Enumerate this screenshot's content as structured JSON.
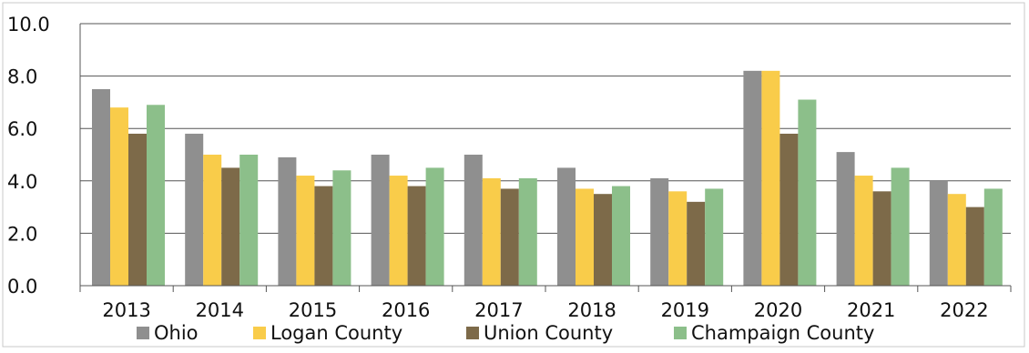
{
  "chart_data": {
    "type": "bar",
    "categories": [
      "2013",
      "2014",
      "2015",
      "2016",
      "2017",
      "2018",
      "2019",
      "2020",
      "2021",
      "2022"
    ],
    "series": [
      {
        "name": "Ohio",
        "color": "#8f8f8f",
        "values": [
          7.5,
          5.8,
          4.9,
          5.0,
          5.0,
          4.5,
          4.1,
          8.2,
          5.1,
          4.0
        ]
      },
      {
        "name": "Logan County",
        "color": "#f9cc4a",
        "values": [
          6.8,
          5.0,
          4.2,
          4.2,
          4.1,
          3.7,
          3.6,
          8.2,
          4.2,
          3.5
        ]
      },
      {
        "name": "Union County",
        "color": "#7d6a49",
        "values": [
          5.8,
          4.5,
          3.8,
          3.8,
          3.7,
          3.5,
          3.2,
          5.8,
          3.6,
          3.0
        ]
      },
      {
        "name": "Champaign County",
        "color": "#8cbf8a",
        "values": [
          6.9,
          5.0,
          4.4,
          4.5,
          4.1,
          3.8,
          3.7,
          7.1,
          4.5,
          3.7
        ]
      }
    ],
    "yticks": [
      "0.0",
      "2.0",
      "4.0",
      "6.0",
      "8.0",
      "10.0"
    ],
    "ylim": [
      0,
      10
    ],
    "title": "",
    "xlabel": "",
    "ylabel": "",
    "grid": true,
    "legend_position": "bottom"
  }
}
